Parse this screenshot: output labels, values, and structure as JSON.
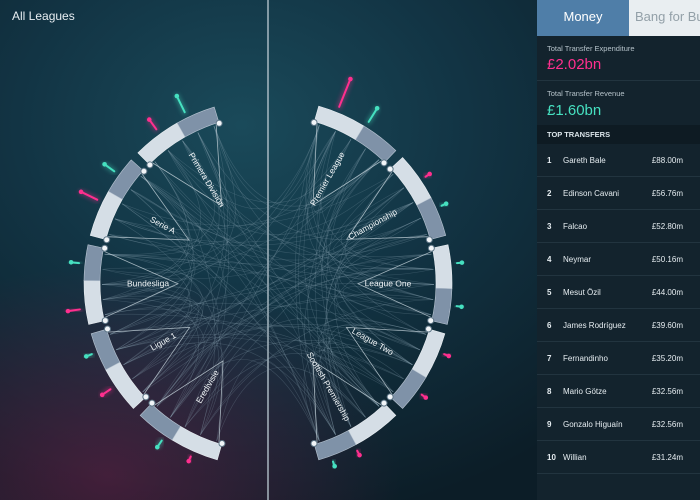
{
  "stage": {
    "title": "All Leagues"
  },
  "leagues_left": [
    "Primera División",
    "Serie A",
    "Bundesliga",
    "Ligue 1",
    "Eredivisie"
  ],
  "leagues_right": [
    "Premier League",
    "Championship",
    "League One",
    "League Two",
    "Scottish Premiership"
  ],
  "panel": {
    "tabs": [
      {
        "label": "Money",
        "active": true
      },
      {
        "label": "Bang for Buck",
        "active": false
      }
    ],
    "expenditure": {
      "label": "Total Transfer Expenditure",
      "value": "£2.02bn"
    },
    "revenue": {
      "label": "Total Transfer Revenue",
      "value": "£1.60bn"
    },
    "top_title": "TOP TRANSFERS",
    "transfers": [
      {
        "rank": "1",
        "name": "Gareth Bale",
        "fee": "£88.00m"
      },
      {
        "rank": "2",
        "name": "Edinson Cavani",
        "fee": "£56.76m"
      },
      {
        "rank": "3",
        "name": "Falcao",
        "fee": "£52.80m"
      },
      {
        "rank": "4",
        "name": "Neymar",
        "fee": "£50.16m"
      },
      {
        "rank": "5",
        "name": "Mesut Özil",
        "fee": "£44.00m"
      },
      {
        "rank": "6",
        "name": "James Rodríguez",
        "fee": "£39.60m"
      },
      {
        "rank": "7",
        "name": "Fernandinho",
        "fee": "£35.20m"
      },
      {
        "rank": "8",
        "name": "Mario Götze",
        "fee": "£32.56m"
      },
      {
        "rank": "9",
        "name": "Gonzalo Higuaín",
        "fee": "£32.56m"
      },
      {
        "rank": "10",
        "name": "Willian",
        "fee": "£31.24m"
      }
    ]
  },
  "colors": {
    "spend": "#ff2f8e",
    "revenue": "#46e0c0",
    "money_tab": "#4f7ea8",
    "arc_light": "#d5dee6",
    "arc_dark": "#7f92a8"
  }
}
